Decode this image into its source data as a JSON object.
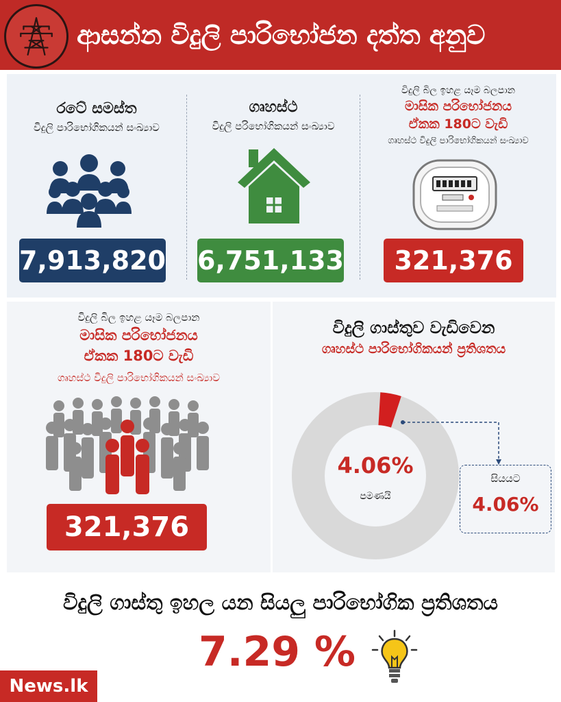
{
  "header": {
    "title": "ආසන්න විදුලි පාරිභෝජන දත්ත අනුව"
  },
  "cards": [
    {
      "title": "රටේ සමස්ත",
      "subtitle": "විදුලි පාරිභෝගිකයන් සංඛ්‍යාව",
      "value": "7,913,820",
      "color": "#1f3e67",
      "icon": "people-group-icon"
    },
    {
      "title": "ගෘහස්ථ",
      "subtitle": "විදුලි පරිභෝගිකයන් සංඛ්‍යාව",
      "value": "6,751,133",
      "color": "#3f8c3f",
      "icon": "house-icon"
    },
    {
      "line1": "විදුලි බිල ඉහළ යෑම බලපාන",
      "line2": "මාසික පරිභෝජනය",
      "line3": "ඒකක 180ට වැඩි",
      "line4": "ගෘහස්ථ විදුලි පාරිභෝගිකයන් සංඛ්‍යාව",
      "value": "321,376",
      "color": "#c72a25",
      "icon": "electric-meter-icon"
    }
  ],
  "crowd_panel": {
    "line1": "විදුලි බිල ඉහළ යෑම බලපාන",
    "line2": "මාසික පරිභෝජනය",
    "line3": "ඒකක 180ට වැඩි",
    "line4": "ගෘහස්ථ විදුලි පාරිභෝගිකයන් සංඛ්‍යාව",
    "value": "321,376",
    "icon": "crowd-icon"
  },
  "donut_panel": {
    "title": "විදුලි ගාස්තුව වැඩිවෙන",
    "subtitle": "ගෘහස්ථ පාරිභෝගිකයන් ප්‍රතිශතය",
    "center_value": "4.06%",
    "center_label": "පමණයි",
    "callout_label": "සියයට",
    "callout_value": "4.06%",
    "percent": 4.06,
    "colors": {
      "highlight": "#d21f1f",
      "rest": "#d9d9d9"
    }
  },
  "footer": {
    "title": "විදුලි ගාස්තු ඉහල යන සියලු පාරිභෝගික ප්‍රතිශතය",
    "value": "7.29 %",
    "icon": "lightbulb-icon",
    "brand": "News.lk"
  }
}
